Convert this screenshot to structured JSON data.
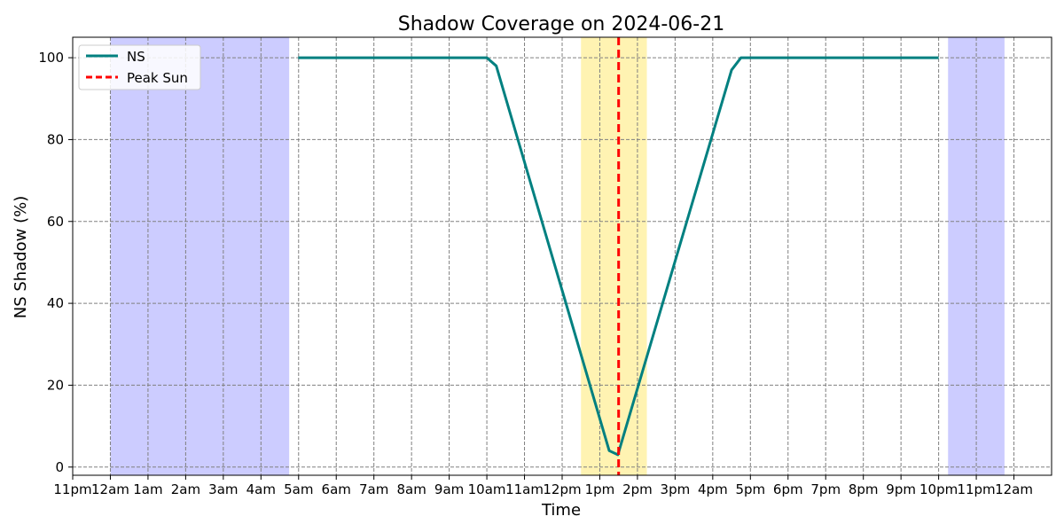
{
  "chart_data": {
    "type": "line",
    "title": "Shadow Coverage on 2024-06-21",
    "xlabel": "Time",
    "ylabel": "NS Shadow (%)",
    "xlim": [
      -1.0,
      25.0
    ],
    "ylim": [
      -2,
      105
    ],
    "yticks": [
      0,
      20,
      40,
      60,
      80,
      100
    ],
    "xticks": [
      {
        "hour": -1,
        "label": "11pm"
      },
      {
        "hour": 0,
        "label": "12am"
      },
      {
        "hour": 1,
        "label": "1am"
      },
      {
        "hour": 2,
        "label": "2am"
      },
      {
        "hour": 3,
        "label": "3am"
      },
      {
        "hour": 4,
        "label": "4am"
      },
      {
        "hour": 5,
        "label": "5am"
      },
      {
        "hour": 6,
        "label": "6am"
      },
      {
        "hour": 7,
        "label": "7am"
      },
      {
        "hour": 8,
        "label": "8am"
      },
      {
        "hour": 9,
        "label": "9am"
      },
      {
        "hour": 10,
        "label": "10am"
      },
      {
        "hour": 11,
        "label": "11am"
      },
      {
        "hour": 12,
        "label": "12pm"
      },
      {
        "hour": 13,
        "label": "1pm"
      },
      {
        "hour": 14,
        "label": "2pm"
      },
      {
        "hour": 15,
        "label": "3pm"
      },
      {
        "hour": 16,
        "label": "4pm"
      },
      {
        "hour": 17,
        "label": "5pm"
      },
      {
        "hour": 18,
        "label": "6pm"
      },
      {
        "hour": 19,
        "label": "7pm"
      },
      {
        "hour": 20,
        "label": "8pm"
      },
      {
        "hour": 21,
        "label": "9pm"
      },
      {
        "hour": 22,
        "label": "10pm"
      },
      {
        "hour": 23,
        "label": "11pm"
      },
      {
        "hour": 24,
        "label": "12am"
      }
    ],
    "grid": true,
    "legend": {
      "placement": "top-left",
      "entries": [
        {
          "label": "NS",
          "color": "#008080",
          "style": "solid"
        },
        {
          "label": "Peak Sun",
          "color": "#ff0000",
          "style": "dashed"
        }
      ]
    },
    "series": [
      {
        "name": "NS",
        "color": "#008080",
        "x": [
          4.99,
          10.0,
          10.25,
          13.25,
          13.48,
          16.5,
          16.75,
          22.0
        ],
        "y": [
          100,
          100,
          98,
          4,
          3,
          97,
          100,
          100
        ]
      }
    ],
    "vertical_lines": [
      {
        "name": "Peak Sun",
        "x": 13.5,
        "color": "#ff0000"
      }
    ],
    "shaded_regions": [
      {
        "x0": 0.0,
        "x1": 4.75,
        "color": "#0000ff",
        "opacity": 0.2
      },
      {
        "x0": 22.25,
        "x1": 23.75,
        "color": "#0000ff",
        "opacity": 0.2
      },
      {
        "x0": 12.5,
        "x1": 14.25,
        "color": "#ffd700",
        "opacity": 0.3
      }
    ]
  }
}
